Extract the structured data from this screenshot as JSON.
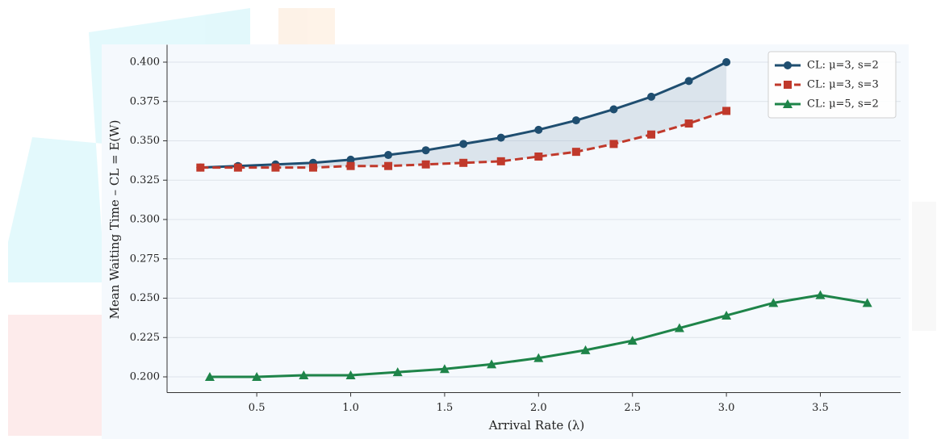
{
  "chart_data": {
    "type": "line",
    "xlabel": "Arrival Rate (λ)",
    "ylabel": "Mean Waiting Time – CL = E(W)",
    "xlim": [
      0.0225,
      3.9275
    ],
    "ylim": [
      0.19,
      0.41
    ],
    "xticks": [
      0.5,
      {
        "value": 1.0,
        "label": "1.0"
      },
      1.5,
      {
        "value": 2.0,
        "label": "2.0"
      },
      2.5,
      {
        "value": 3.0,
        "label": "3.0"
      },
      3.5
    ],
    "yticks": [
      {
        "value": 0.2,
        "label": "0.200"
      },
      {
        "value": 0.225,
        "label": "0.225"
      },
      {
        "value": 0.25,
        "label": "0.250"
      },
      {
        "value": 0.275,
        "label": "0.275"
      },
      {
        "value": 0.3,
        "label": "0.300"
      },
      {
        "value": 0.325,
        "label": "0.325"
      },
      {
        "value": 0.35,
        "label": "0.350"
      },
      {
        "value": 0.375,
        "label": "0.375"
      },
      {
        "value": 0.4,
        "label": "0.400"
      }
    ],
    "grid": true,
    "legend": "upper right",
    "fill_between": [
      0,
      1
    ],
    "series": [
      {
        "name": "CL: μ=3, s=2",
        "color": "#1f4e70",
        "marker": "circle",
        "linestyle": "solid",
        "x": [
          0.2,
          0.4,
          0.6,
          0.8,
          1.0,
          1.2,
          1.4,
          1.6,
          1.8,
          2.0,
          2.2,
          2.4,
          2.6,
          2.8,
          3.0
        ],
        "values": [
          0.333,
          0.334,
          0.335,
          0.336,
          0.338,
          0.341,
          0.344,
          0.348,
          0.352,
          0.357,
          0.363,
          0.37,
          0.378,
          0.388,
          0.4
        ]
      },
      {
        "name": "CL: μ=3, s=3",
        "color": "#c0392b",
        "marker": "square",
        "linestyle": "dashed",
        "x": [
          0.2,
          0.4,
          0.6,
          0.8,
          1.0,
          1.2,
          1.4,
          1.6,
          1.8,
          2.0,
          2.2,
          2.4,
          2.6,
          2.8,
          3.0
        ],
        "values": [
          0.333,
          0.333,
          0.333,
          0.333,
          0.334,
          0.334,
          0.335,
          0.336,
          0.337,
          0.34,
          0.343,
          0.348,
          0.354,
          0.361,
          0.369
        ]
      },
      {
        "name": "CL: μ=5, s=2",
        "color": "#1e8449",
        "marker": "triangle",
        "linestyle": "solid",
        "x": [
          0.25,
          0.5,
          0.75,
          1.0,
          1.25,
          1.5,
          1.75,
          2.0,
          2.25,
          2.5,
          2.75,
          3.0,
          3.25,
          3.5,
          3.75
        ],
        "values": [
          0.2,
          0.2,
          0.201,
          0.201,
          0.203,
          0.205,
          0.208,
          0.212,
          0.217,
          0.223,
          0.231,
          0.239,
          0.247,
          0.252,
          0.247
        ]
      }
    ]
  }
}
